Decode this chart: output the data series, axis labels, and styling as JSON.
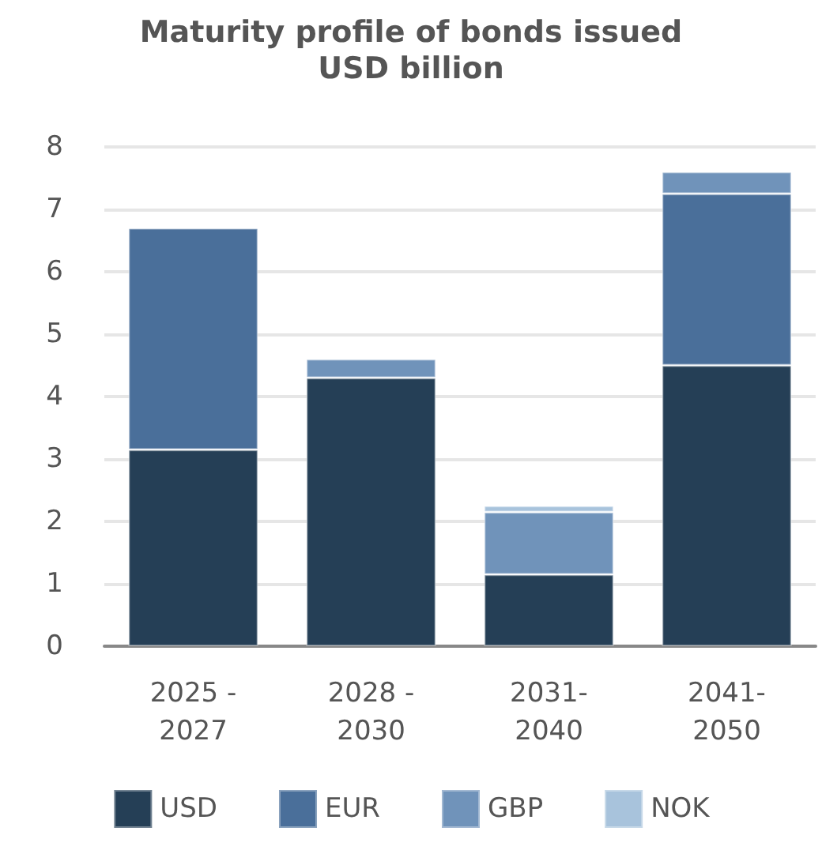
{
  "chart_data": {
    "type": "bar",
    "title": "Maturity profile of bonds issued",
    "subtitle": "USD billion",
    "categories": [
      "2025 -\n2027",
      "2028 -\n2030",
      "2031-\n2040",
      "2041-\n2050"
    ],
    "series": [
      {
        "name": "USD",
        "color": "#253f56",
        "values": [
          3.15,
          4.3,
          1.15,
          4.5
        ]
      },
      {
        "name": "EUR",
        "color": "#4a6f9a",
        "values": [
          3.55,
          null,
          null,
          2.75
        ]
      },
      {
        "name": "GBP",
        "color": "#7093ba",
        "values": [
          null,
          0.3,
          1.0,
          0.35
        ]
      },
      {
        "name": "NOK",
        "color": "#a8c3dc",
        "values": [
          null,
          null,
          0.1,
          null
        ]
      }
    ],
    "stacked": true,
    "ylim": [
      0,
      8
    ],
    "yticks": [
      0,
      1,
      2,
      3,
      4,
      5,
      6,
      7,
      8
    ],
    "grid": "y",
    "legend": "bottom"
  }
}
